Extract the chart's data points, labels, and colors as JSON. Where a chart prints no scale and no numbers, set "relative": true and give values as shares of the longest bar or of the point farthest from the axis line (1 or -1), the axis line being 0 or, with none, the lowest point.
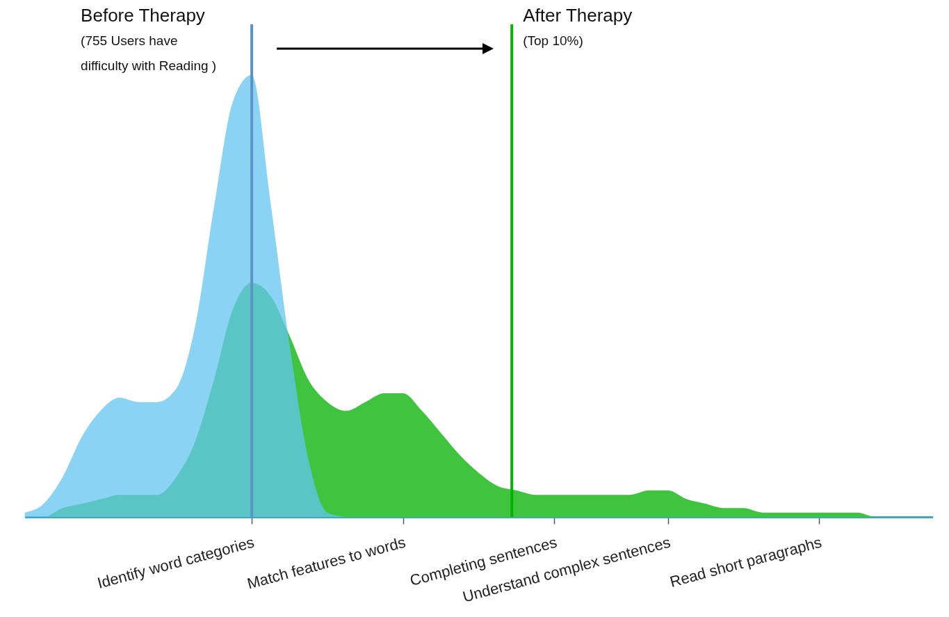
{
  "chart_data": {
    "type": "area",
    "relative": true,
    "categories": [
      null,
      null,
      null,
      null,
      null,
      null,
      null,
      null,
      null,
      null,
      null,
      null,
      "Identify word categories",
      null,
      null,
      null,
      null,
      null,
      null,
      null,
      "Match features to words",
      null,
      null,
      null,
      null,
      null,
      null,
      null,
      "Completing sentences",
      null,
      null,
      null,
      null,
      null,
      "Understand complex sentences",
      null,
      null,
      null,
      null,
      null,
      null,
      null,
      "Read short paragraphs",
      null,
      null,
      null,
      null,
      null,
      null
    ],
    "series": [
      {
        "color": "#40c440",
        "values": [
          0,
          0,
          0.02,
          0.03,
          0.04,
          0.05,
          0.05,
          0.05,
          0.09,
          0.17,
          0.31,
          0.47,
          0.53,
          0.5,
          0.41,
          0.31,
          0.26,
          0.24,
          0.26,
          0.28,
          0.28,
          0.24,
          0.19,
          0.14,
          0.1,
          0.07,
          0.06,
          0.05,
          0.05,
          0.05,
          0.05,
          0.05,
          0.05,
          0.06,
          0.06,
          0.04,
          0.03,
          0.02,
          0.02,
          0.01,
          0.01,
          0.01,
          0.01,
          0.01,
          0.01,
          0,
          0,
          0,
          0
        ]
      },
      {
        "color": "#64c4f2",
        "values": [
          0.01,
          0.03,
          0.09,
          0.18,
          0.24,
          0.27,
          0.26,
          0.26,
          0.29,
          0.43,
          0.7,
          0.94,
          1,
          0.71,
          0.39,
          0.13,
          0.01,
          0,
          null,
          null,
          null,
          null,
          null,
          null,
          null,
          null,
          null,
          null,
          null,
          null,
          null,
          null,
          null,
          null,
          null,
          null,
          null,
          null,
          null,
          null,
          null,
          null,
          null,
          null,
          null,
          null,
          null,
          null,
          null
        ]
      }
    ],
    "ref_lines": [
      {
        "axis": "x",
        "value": "Identify word categories",
        "label": "Before Therapy",
        "color": "#5b93c7"
      }
    ],
    "annotations": [
      "(755 Users have difficulty with Reading )",
      "After Therapy",
      "(Top 10%)"
    ]
  }
}
